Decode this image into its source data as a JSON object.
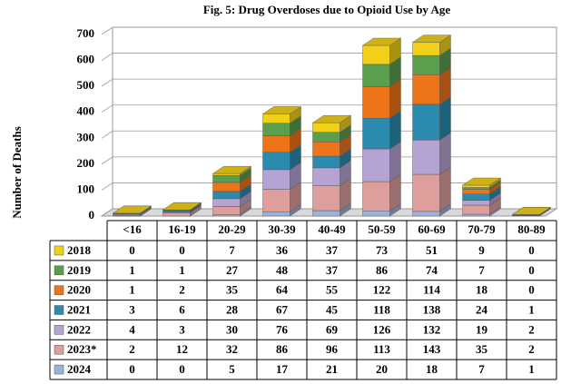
{
  "chart_data": {
    "type": "bar3d_stacked",
    "title": "Fig. 5: Drug Overdoses due to Opioid Use by Age",
    "y_label": "Number of Deaths",
    "categories": [
      "<16",
      "16-19",
      "20-29",
      "30-39",
      "40-49",
      "50-59",
      "60-69",
      "70-79",
      "80-89"
    ],
    "series": [
      {
        "name": "2018",
        "color": "#f2d01a",
        "values": [
          0,
          0,
          7,
          36,
          37,
          73,
          51,
          9,
          0
        ]
      },
      {
        "name": "2019",
        "color": "#5a9e4e",
        "values": [
          1,
          1,
          27,
          48,
          37,
          86,
          74,
          7,
          0
        ]
      },
      {
        "name": "2020",
        "color": "#ee7419",
        "values": [
          1,
          2,
          35,
          64,
          55,
          122,
          114,
          18,
          0
        ]
      },
      {
        "name": "2021",
        "color": "#2b8bae",
        "values": [
          3,
          6,
          28,
          67,
          45,
          118,
          138,
          24,
          1
        ]
      },
      {
        "name": "2022",
        "color": "#b5a3d4",
        "values": [
          4,
          3,
          30,
          76,
          69,
          126,
          132,
          19,
          2
        ]
      },
      {
        "name": "2023*",
        "color": "#dd9e9c",
        "values": [
          2,
          12,
          32,
          86,
          96,
          113,
          143,
          35,
          2
        ]
      },
      {
        "name": "2024",
        "color": "#9bb3da",
        "values": [
          0,
          0,
          5,
          17,
          21,
          20,
          18,
          7,
          1
        ]
      }
    ],
    "ylim": [
      0,
      700
    ],
    "yticks": [
      0,
      100,
      200,
      300,
      400,
      500,
      600,
      700
    ],
    "grid": true
  }
}
